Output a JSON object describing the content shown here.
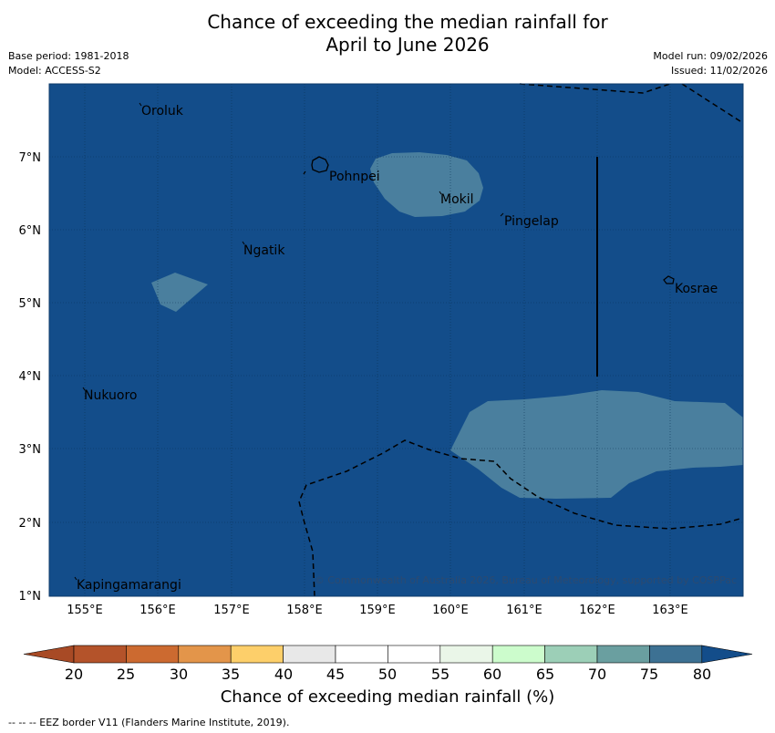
{
  "title": {
    "line1": "Chance of exceeding the median rainfall for",
    "line2": "April to June 2026"
  },
  "meta": {
    "base_period": "Base period: 1981-2018",
    "model": "Model: ACCESS-S2",
    "model_run": "Model run: 09/02/2026",
    "issued": "Issued: 11/02/2026"
  },
  "map": {
    "background_color": "#134d8a",
    "patch_color": "#4a7f9e",
    "x_ticks": [
      "155°E",
      "156°E",
      "157°E",
      "158°E",
      "159°E",
      "160°E",
      "161°E",
      "162°E",
      "163°E"
    ],
    "y_ticks": [
      "7°N",
      "6°N",
      "5°N",
      "4°N",
      "3°N",
      "2°N",
      "1°N"
    ],
    "places": {
      "oroluk": "Oroluk",
      "pohnpei": "Pohnpei",
      "mokil": "Mokil",
      "pingelap": "Pingelap",
      "ngatik": "Ngatik",
      "kosrae": "Kosrae",
      "nukuoro": "Nukuoro",
      "kapingamarangi": "Kapingamarangi"
    },
    "copyright": "© Commonwealth of Australia 2026, Bureau of Meteorology, supported by COSPPac"
  },
  "colorbar": {
    "ticks": [
      "20",
      "25",
      "30",
      "35",
      "40",
      "45",
      "50",
      "55",
      "60",
      "65",
      "70",
      "75",
      "80"
    ],
    "colors": [
      "#a84a25",
      "#b4532a",
      "#cc6a30",
      "#e3954a",
      "#fdcf6a",
      "#e8e8e8",
      "#ffffff",
      "#ffffff",
      "#eaf6e8",
      "#ccfccc",
      "#9ccfb7",
      "#6a9fa0",
      "#3d7193",
      "#134d8a"
    ],
    "title": "Chance of exceeding median rainfall (%)"
  },
  "footer": "--  --  -- EEZ border V11 (Flanders Marine Institute, 2019)."
}
